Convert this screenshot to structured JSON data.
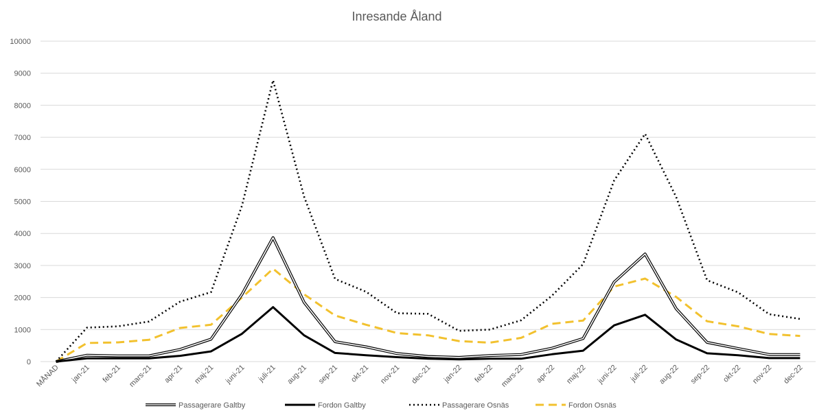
{
  "chart_data": {
    "type": "line",
    "title": "Inresande Åland",
    "xlabel": "",
    "ylabel": "",
    "ylim": [
      0,
      10000
    ],
    "yticks": [
      "0",
      "1000",
      "2000",
      "3000",
      "4000",
      "5000",
      "6000",
      "7000",
      "8000",
      "9000",
      "10000"
    ],
    "grid": true,
    "legend_position": "bottom",
    "categories": [
      "MÅNAD",
      "jan-21",
      "feb-21",
      "mars-21",
      "apr-21",
      "maj-21",
      "juni-21",
      "juli-21",
      "aug-21",
      "sep-21",
      "okt-21",
      "nov-21",
      "dec-21",
      "jan-22",
      "feb-22",
      "mars-22",
      "apr-22",
      "maj-22",
      "juni-22",
      "juli-22",
      "aug-22",
      "sep-22",
      "okt-22",
      "nov-22",
      "dec-22"
    ],
    "series": [
      {
        "name": "Passagerare Galtby",
        "style": "double",
        "color": "#000000",
        "values": [
          0,
          200,
          180,
          180,
          380,
          700,
          2100,
          3870,
          1850,
          620,
          460,
          250,
          160,
          130,
          190,
          220,
          420,
          720,
          2480,
          3360,
          1650,
          600,
          410,
          220,
          220
        ]
      },
      {
        "name": "Fordon Galtby",
        "style": "solid",
        "color": "#000000",
        "values": [
          0,
          100,
          100,
          100,
          180,
          320,
          870,
          1700,
          820,
          270,
          200,
          140,
          90,
          70,
          90,
          90,
          230,
          340,
          1130,
          1460,
          690,
          260,
          200,
          110,
          110
        ]
      },
      {
        "name": "Passagerare Osnäs",
        "style": "dotted",
        "color": "#000000",
        "values": [
          0,
          1060,
          1100,
          1250,
          1870,
          2170,
          4870,
          8780,
          5150,
          2580,
          2180,
          1510,
          1490,
          960,
          1000,
          1290,
          2060,
          3040,
          5650,
          7110,
          5140,
          2540,
          2160,
          1480,
          1330
        ]
      },
      {
        "name": "Fordon Osnäs",
        "style": "dashed",
        "color": "#f2c12e",
        "values": [
          0,
          580,
          600,
          680,
          1050,
          1150,
          2000,
          2900,
          2100,
          1440,
          1150,
          890,
          820,
          640,
          590,
          740,
          1180,
          1280,
          2340,
          2590,
          2020,
          1260,
          1100,
          860,
          800
        ]
      }
    ]
  }
}
